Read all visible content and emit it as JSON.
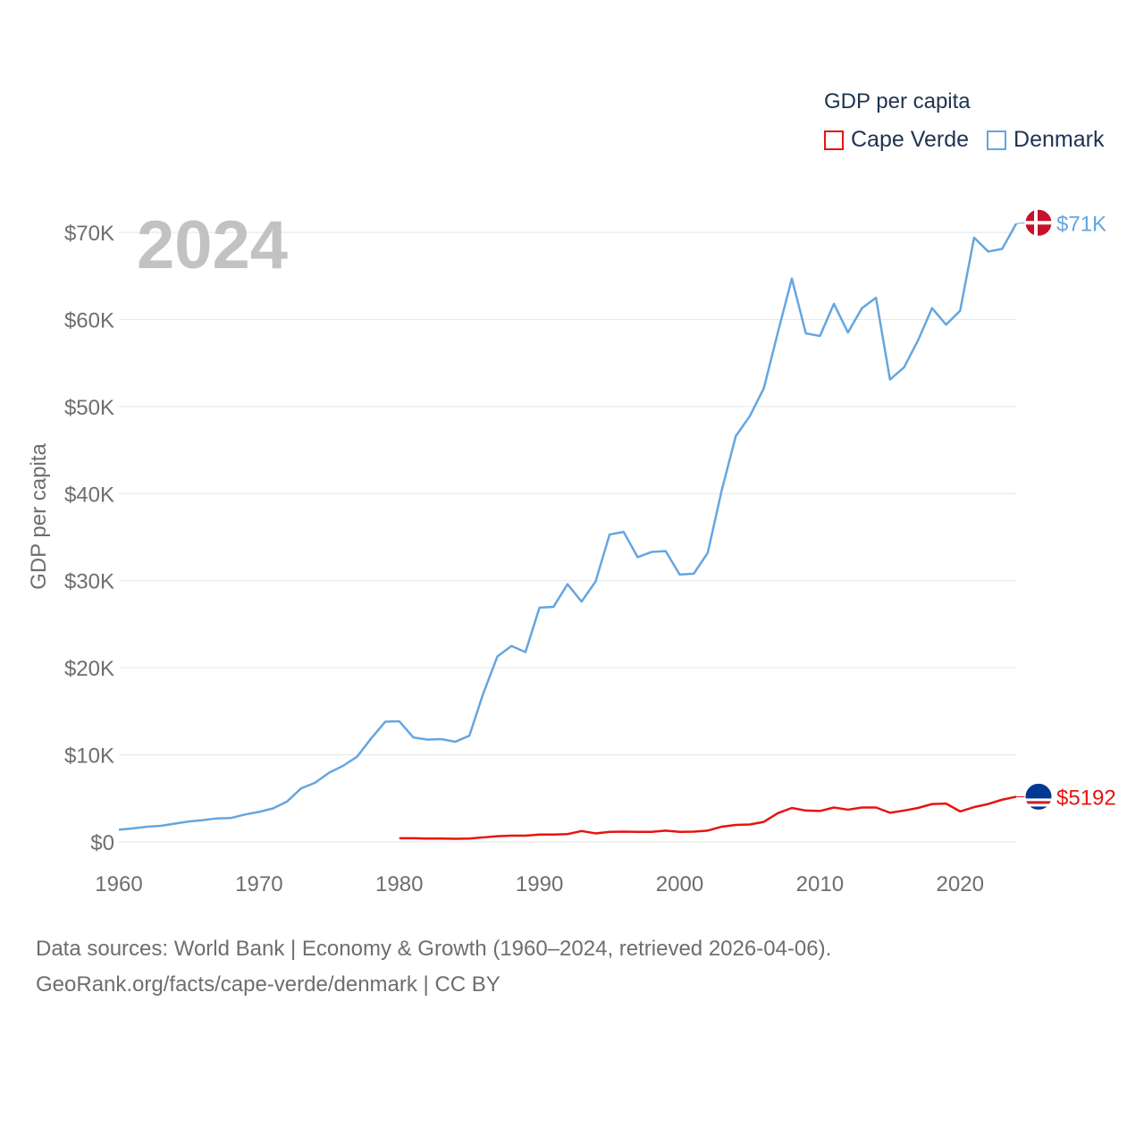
{
  "chart_data": {
    "type": "line",
    "title": "GDP per capita",
    "ylabel": "GDP per capita",
    "xlabel": "",
    "year_label": "2024",
    "xlim": [
      1960,
      2024
    ],
    "ylim": [
      0,
      70000
    ],
    "x_ticks": [
      "1960",
      "1970",
      "1980",
      "1990",
      "2000",
      "2010",
      "2020"
    ],
    "y_ticks": [
      "$0",
      "$10K",
      "$20K",
      "$30K",
      "$40K",
      "$50K",
      "$60K",
      "$70K"
    ],
    "grid": true,
    "legend_position": "top-right",
    "series": [
      {
        "name": "Cape Verde",
        "color": "#e8130f",
        "end_label": "$5192",
        "flag_icon": "cape-verde-flag-icon",
        "x": [
          1980,
          1981,
          1982,
          1983,
          1984,
          1985,
          1986,
          1987,
          1988,
          1989,
          1990,
          1991,
          1992,
          1993,
          1994,
          1995,
          1996,
          1997,
          1998,
          1999,
          2000,
          2001,
          2002,
          2003,
          2004,
          2005,
          2006,
          2007,
          2008,
          2009,
          2010,
          2011,
          2012,
          2013,
          2014,
          2015,
          2016,
          2017,
          2018,
          2019,
          2020,
          2021,
          2022,
          2023,
          2024
        ],
        "values": [
          420,
          420,
          390,
          380,
          360,
          380,
          520,
          650,
          720,
          720,
          850,
          850,
          900,
          1250,
          980,
          1150,
          1180,
          1150,
          1150,
          1300,
          1150,
          1180,
          1300,
          1750,
          1950,
          2000,
          2300,
          3300,
          3900,
          3600,
          3550,
          3950,
          3700,
          3950,
          3950,
          3350,
          3600,
          3900,
          4350,
          4400,
          3500,
          4000,
          4350,
          4850,
          5192
        ]
      },
      {
        "name": "Denmark",
        "color": "#64a6e0",
        "end_label": "$71K",
        "flag_icon": "denmark-flag-icon",
        "x": [
          1960,
          1961,
          1962,
          1963,
          1964,
          1965,
          1966,
          1967,
          1968,
          1969,
          1970,
          1971,
          1972,
          1973,
          1974,
          1975,
          1976,
          1977,
          1978,
          1979,
          1980,
          1981,
          1982,
          1983,
          1984,
          1985,
          1986,
          1987,
          1988,
          1989,
          1990,
          1991,
          1992,
          1993,
          1994,
          1995,
          1996,
          1997,
          1998,
          1999,
          2000,
          2001,
          2002,
          2003,
          2004,
          2005,
          2006,
          2007,
          2008,
          2009,
          2010,
          2011,
          2012,
          2013,
          2014,
          2015,
          2016,
          2017,
          2018,
          2019,
          2020,
          2021,
          2022,
          2023,
          2024
        ],
        "values": [
          1400,
          1550,
          1750,
          1850,
          2100,
          2350,
          2500,
          2700,
          2750,
          3150,
          3450,
          3850,
          4650,
          6150,
          6800,
          7950,
          8750,
          9800,
          11900,
          13800,
          13850,
          12000,
          11750,
          11800,
          11500,
          12200,
          17100,
          21300,
          22500,
          21800,
          26900,
          27000,
          29600,
          27600,
          29900,
          35300,
          35600,
          32700,
          33300,
          33400,
          30700,
          30800,
          33200,
          40400,
          46600,
          48900,
          52100,
          58500,
          64700,
          58400,
          58100,
          61800,
          58500,
          61300,
          62500,
          53100,
          54500,
          57600,
          61300,
          59400,
          61000,
          69400,
          67800,
          68100,
          71000
        ]
      }
    ]
  },
  "footer": {
    "line1": "Data sources: World Bank | Economy & Growth (1960–2024, retrieved 2026-04-06).",
    "line2": "GeoRank.org/facts/cape-verde/denmark | CC BY"
  }
}
